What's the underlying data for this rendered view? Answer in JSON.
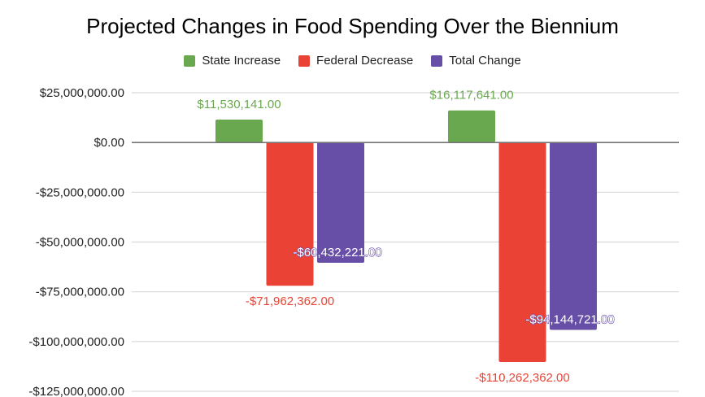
{
  "chart_data": {
    "type": "bar",
    "title": "Projected Changes in Food Spending Over the Biennium",
    "xlabel": "",
    "ylabel": "",
    "categories": [
      "",
      ""
    ],
    "series": [
      {
        "name": "State Increase",
        "color": "#6aa84f",
        "values": [
          11530141,
          16117641
        ],
        "labels": [
          "$11,530,141.00",
          "$16,117,641.00"
        ]
      },
      {
        "name": "Federal Decrease",
        "color": "#ea4335",
        "values": [
          -71962362,
          -110262362
        ],
        "labels": [
          "-$71,962,362.00",
          "-$110,262,362.00"
        ]
      },
      {
        "name": "Total Change",
        "color": "#674ea7",
        "values": [
          -60432221,
          -94144721
        ],
        "labels": [
          "-$60,432,221.00",
          "-$94,144,721.00"
        ]
      }
    ],
    "ylim": [
      -125000000,
      25000000
    ],
    "yticks": [
      25000000,
      0,
      -25000000,
      -50000000,
      -75000000,
      -100000000,
      -125000000
    ],
    "ytick_labels": [
      "$25,000,000.00",
      "$0.00",
      "-$25,000,000.00",
      "-$50,000,000.00",
      "-$75,000,000.00",
      "-$100,000,000.00",
      "-$125,000,000.00"
    ],
    "grid": true,
    "legend_position": "top-center"
  }
}
